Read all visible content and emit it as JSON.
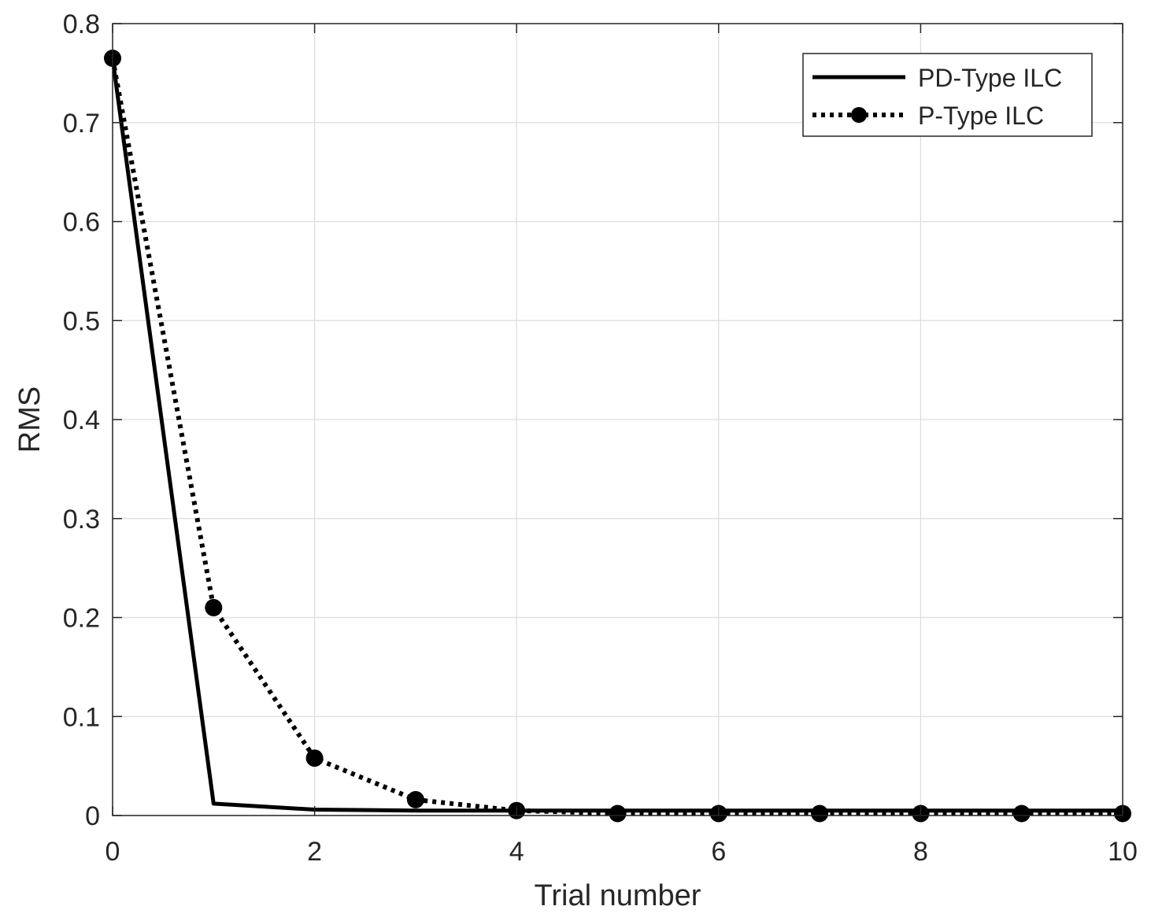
{
  "chart_data": {
    "type": "line",
    "title": "",
    "xlabel": "Trial number",
    "ylabel": "RMS",
    "xlim": [
      0,
      10
    ],
    "ylim": [
      0,
      0.8
    ],
    "xticks": [
      0,
      2,
      4,
      6,
      8,
      10
    ],
    "yticks": [
      0,
      0.1,
      0.2,
      0.3,
      0.4,
      0.5,
      0.6,
      0.7,
      0.8
    ],
    "xtick_labels": [
      "0",
      "2",
      "4",
      "6",
      "8",
      "10"
    ],
    "ytick_labels": [
      "0",
      "0.1",
      "0.2",
      "0.3",
      "0.4",
      "0.5",
      "0.6",
      "0.7",
      "0.8"
    ],
    "grid": true,
    "legend_position": "top-right",
    "series": [
      {
        "name": "PD-Type ILC",
        "style": "solid",
        "marker": "none",
        "color": "#000000",
        "x": [
          0,
          1,
          2,
          3,
          4,
          5,
          6,
          7,
          8,
          9,
          10
        ],
        "y": [
          0.765,
          0.012,
          0.006,
          0.005,
          0.005,
          0.005,
          0.005,
          0.005,
          0.005,
          0.005,
          0.005
        ]
      },
      {
        "name": "P-Type ILC",
        "style": "dotted",
        "marker": "circle",
        "color": "#000000",
        "x": [
          0,
          1,
          2,
          3,
          4,
          5,
          6,
          7,
          8,
          9,
          10
        ],
        "y": [
          0.765,
          0.21,
          0.058,
          0.016,
          0.005,
          0.002,
          0.002,
          0.002,
          0.002,
          0.002,
          0.002
        ]
      }
    ]
  }
}
